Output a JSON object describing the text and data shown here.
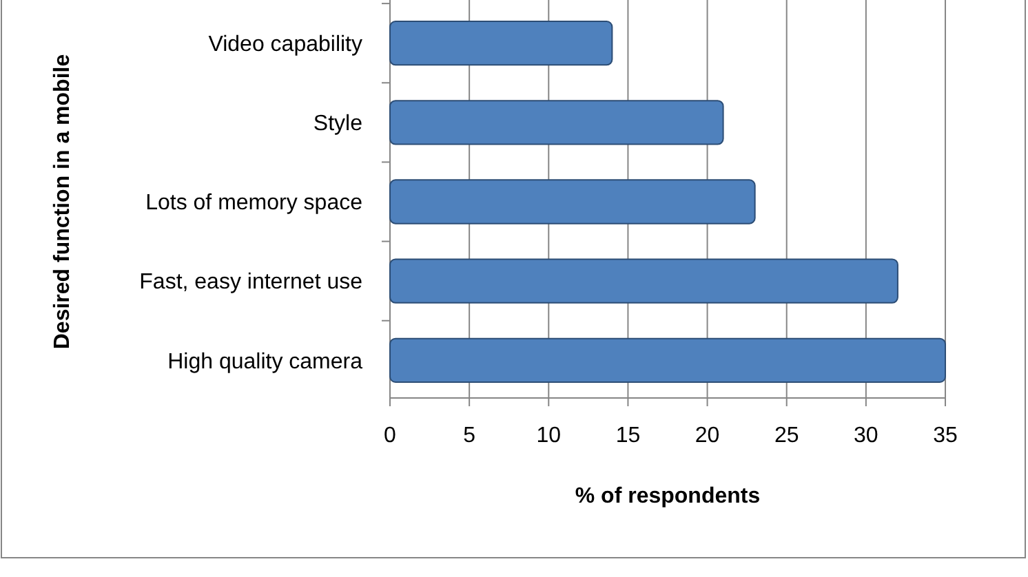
{
  "chart_data": {
    "type": "bar",
    "orientation": "horizontal",
    "xlabel": "% of respondents",
    "ylabel": "Desired function in a mobile",
    "categories": [
      "Video capability",
      "Style",
      "Lots of memory space",
      "Fast, easy internet use",
      "High quality camera"
    ],
    "values": [
      14,
      21,
      23,
      32,
      35
    ],
    "color": "#4f81bd",
    "xlim": [
      0,
      35
    ],
    "xticks": [
      0,
      5,
      10,
      15,
      20,
      25,
      30,
      35
    ],
    "grid": "x"
  }
}
